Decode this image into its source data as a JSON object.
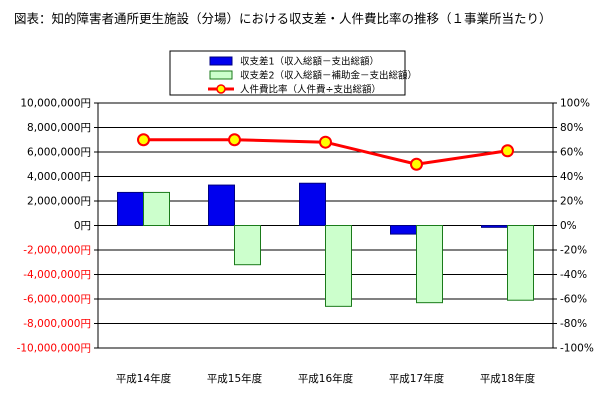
{
  "title": "図表：知的障害者通所更生施設（分場）における収支差・人件費比率の推移（１事業所当たり）",
  "chart_data": {
    "type": "bar",
    "categories": [
      "平成14年度",
      "平成15年度",
      "平成16年度",
      "平成17年度",
      "平成18年度"
    ],
    "series": [
      {
        "name": "収支差1（収入総額－支出総額）",
        "kind": "bar",
        "axis": "left",
        "color": "#0000ee",
        "stroke": "#000080",
        "values": [
          2700000,
          3300000,
          3450000,
          -700000,
          -150000
        ]
      },
      {
        "name": "収支差2（収入総額－補助金－支出総額）",
        "kind": "bar",
        "axis": "left",
        "color": "#ccffcc",
        "stroke": "#1a7a1a",
        "values": [
          2700000,
          -3200000,
          -6600000,
          -6300000,
          -6100000
        ]
      },
      {
        "name": "人件費比率（人件費÷支出総額）",
        "kind": "line",
        "axis": "right",
        "color": "#ff0000",
        "marker_fill": "#ffff00",
        "values": [
          70,
          70,
          68,
          50,
          61
        ]
      }
    ],
    "y_left": {
      "min": -10000000,
      "max": 10000000,
      "ticks": [
        {
          "value": 10000000,
          "label": "10,000,000円"
        },
        {
          "value": 8000000,
          "label": "8,000,000円"
        },
        {
          "value": 6000000,
          "label": "6,000,000円"
        },
        {
          "value": 4000000,
          "label": "4,000,000円"
        },
        {
          "value": 2000000,
          "label": "2,000,000円"
        },
        {
          "value": 0,
          "label": "0円"
        },
        {
          "value": -2000000,
          "label": "-2,000,000円"
        },
        {
          "value": -4000000,
          "label": "-4,000,000円"
        },
        {
          "value": -6000000,
          "label": "-6,000,000円"
        },
        {
          "value": -8000000,
          "label": "-8,000,000円"
        },
        {
          "value": -10000000,
          "label": "-10,000,000円"
        }
      ]
    },
    "y_right": {
      "min": -100,
      "max": 100,
      "ticks": [
        {
          "value": 100,
          "label": "100%"
        },
        {
          "value": 80,
          "label": "80%"
        },
        {
          "value": 60,
          "label": "60%"
        },
        {
          "value": 40,
          "label": "40%"
        },
        {
          "value": 20,
          "label": "20%"
        },
        {
          "value": 0,
          "label": "0%"
        },
        {
          "value": -20,
          "label": "-20%"
        },
        {
          "value": -40,
          "label": "-40%"
        },
        {
          "value": -60,
          "label": "-60%"
        },
        {
          "value": -80,
          "label": "-80%"
        },
        {
          "value": -100,
          "label": "-100%"
        }
      ]
    },
    "negative_label_color": "#ff0000",
    "grid": true,
    "legend_position": "top-center"
  }
}
